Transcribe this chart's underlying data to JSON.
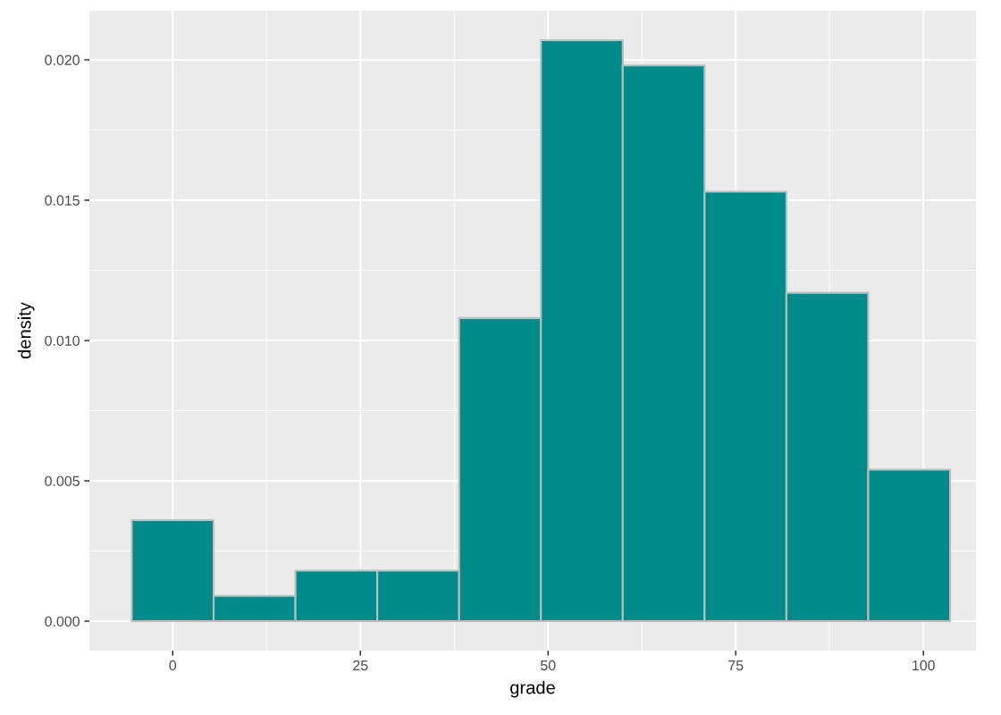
{
  "chart_data": {
    "type": "histogram",
    "xlabel": "grade",
    "ylabel": "density",
    "bins": [
      -5.45,
      5.45,
      16.35,
      27.25,
      38.15,
      49.05,
      59.95,
      70.85,
      81.75,
      92.65,
      103.55
    ],
    "values": [
      0.0036,
      0.0009,
      0.0018,
      0.0018,
      0.0108,
      0.0207,
      0.0198,
      0.0153,
      0.0117,
      0.0054
    ],
    "color": "#008b8b",
    "xlim": [
      -11.1,
      107
    ],
    "xticks": [
      0,
      25,
      50,
      75,
      100
    ],
    "ylim": [
      -0.00105,
      0.02175
    ],
    "yticks": [
      {
        "value": 0,
        "label": "0.000"
      },
      {
        "value": 0.005,
        "label": "0.005"
      },
      {
        "value": 0.01,
        "label": "0.010"
      },
      {
        "value": 0.015,
        "label": "0.015"
      },
      {
        "value": 0.02,
        "label": "0.020"
      }
    ],
    "grid": true
  }
}
